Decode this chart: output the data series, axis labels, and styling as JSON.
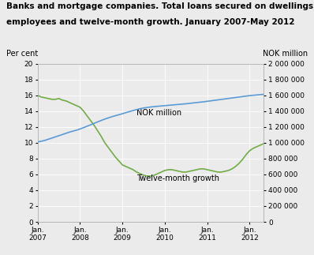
{
  "title_line1": "Banks and mortgage companies. Total loans secured on dwellings to",
  "title_line2": "employees and twelve-month growth. January 2007-May 2012",
  "label_left": "Per cent",
  "label_right": "NOK million",
  "ylim_left": [
    0,
    20
  ],
  "ylim_right": [
    0,
    2000000
  ],
  "yticks_left": [
    0,
    2,
    4,
    6,
    8,
    10,
    12,
    14,
    16,
    18,
    20
  ],
  "yticks_right": [
    0,
    200000,
    400000,
    600000,
    800000,
    1000000,
    1200000,
    1400000,
    1600000,
    1800000,
    2000000
  ],
  "xtick_labels": [
    "Jan.\n2007",
    "Jan.\n2008",
    "Jan.\n2009",
    "Jan.\n2010",
    "Jan.\n2011",
    "Jan.\n2012"
  ],
  "xtick_positions": [
    0,
    12,
    24,
    36,
    48,
    60
  ],
  "line_nok_color": "#5b9bd5",
  "line_growth_color": "#70ad47",
  "label_nok": "NOK million",
  "label_growth": "Twelve-month growth",
  "background_color": "#ebebeb",
  "grid_color": "#ffffff",
  "nok_data": [
    1010000,
    1020000,
    1030000,
    1045000,
    1060000,
    1075000,
    1090000,
    1105000,
    1120000,
    1135000,
    1148000,
    1160000,
    1175000,
    1192000,
    1210000,
    1228000,
    1247000,
    1265000,
    1283000,
    1300000,
    1315000,
    1330000,
    1343000,
    1355000,
    1368000,
    1382000,
    1395000,
    1408000,
    1420000,
    1432000,
    1440000,
    1447000,
    1453000,
    1458000,
    1462000,
    1466000,
    1470000,
    1474000,
    1478000,
    1482000,
    1486000,
    1490000,
    1494000,
    1499000,
    1504000,
    1509000,
    1514000,
    1519000,
    1525000,
    1531000,
    1537000,
    1543000,
    1549000,
    1555000,
    1561000,
    1567000,
    1573000,
    1579000,
    1585000,
    1591000,
    1597000,
    1601000,
    1605000,
    1609000,
    1613000
  ],
  "growth_data": [
    16.0,
    15.8,
    15.7,
    15.6,
    15.5,
    15.5,
    15.6,
    15.4,
    15.3,
    15.1,
    14.9,
    14.7,
    14.5,
    14.0,
    13.4,
    12.8,
    12.2,
    11.5,
    10.8,
    10.0,
    9.4,
    8.8,
    8.2,
    7.7,
    7.2,
    7.0,
    6.8,
    6.6,
    6.3,
    6.1,
    5.9,
    5.8,
    5.8,
    5.9,
    6.1,
    6.3,
    6.5,
    6.6,
    6.6,
    6.5,
    6.4,
    6.3,
    6.3,
    6.4,
    6.5,
    6.6,
    6.7,
    6.7,
    6.6,
    6.5,
    6.4,
    6.3,
    6.3,
    6.4,
    6.5,
    6.7,
    7.0,
    7.4,
    7.9,
    8.5,
    9.0,
    9.3,
    9.5,
    9.7,
    9.9
  ]
}
